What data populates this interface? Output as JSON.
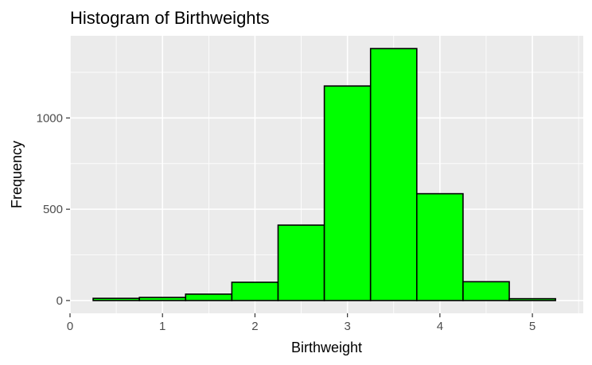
{
  "chart_data": {
    "type": "bar",
    "title": "Histogram of Birthweights",
    "xlabel": "Birthweight",
    "ylabel": "Frequency",
    "bin_width": 0.5,
    "bins": [
      {
        "x0": 0.25,
        "x1": 0.75,
        "value": 12
      },
      {
        "x0": 0.75,
        "x1": 1.25,
        "value": 17
      },
      {
        "x0": 1.25,
        "x1": 1.75,
        "value": 35
      },
      {
        "x0": 1.75,
        "x1": 2.25,
        "value": 100
      },
      {
        "x0": 2.25,
        "x1": 2.75,
        "value": 413
      },
      {
        "x0": 2.75,
        "x1": 3.25,
        "value": 1175
      },
      {
        "x0": 3.25,
        "x1": 3.75,
        "value": 1380
      },
      {
        "x0": 3.75,
        "x1": 4.25,
        "value": 585
      },
      {
        "x0": 4.25,
        "x1": 4.75,
        "value": 103
      },
      {
        "x0": 4.75,
        "x1": 5.25,
        "value": 10
      }
    ],
    "xlim": [
      0,
      5.55
    ],
    "ylim": [
      -70,
      1450
    ],
    "x_ticks": [
      0,
      1,
      2,
      3,
      4,
      5
    ],
    "x_tick_labels": [
      "0",
      "1",
      "2",
      "3",
      "4",
      "5"
    ],
    "y_ticks": [
      0,
      500,
      1000
    ],
    "y_tick_labels": [
      "0",
      "500",
      "1000"
    ],
    "bar_fill": "#00ff00",
    "bar_stroke": "#000000",
    "panel_background": "#ebebeb",
    "grid_color": "#ffffff",
    "grid": true
  }
}
